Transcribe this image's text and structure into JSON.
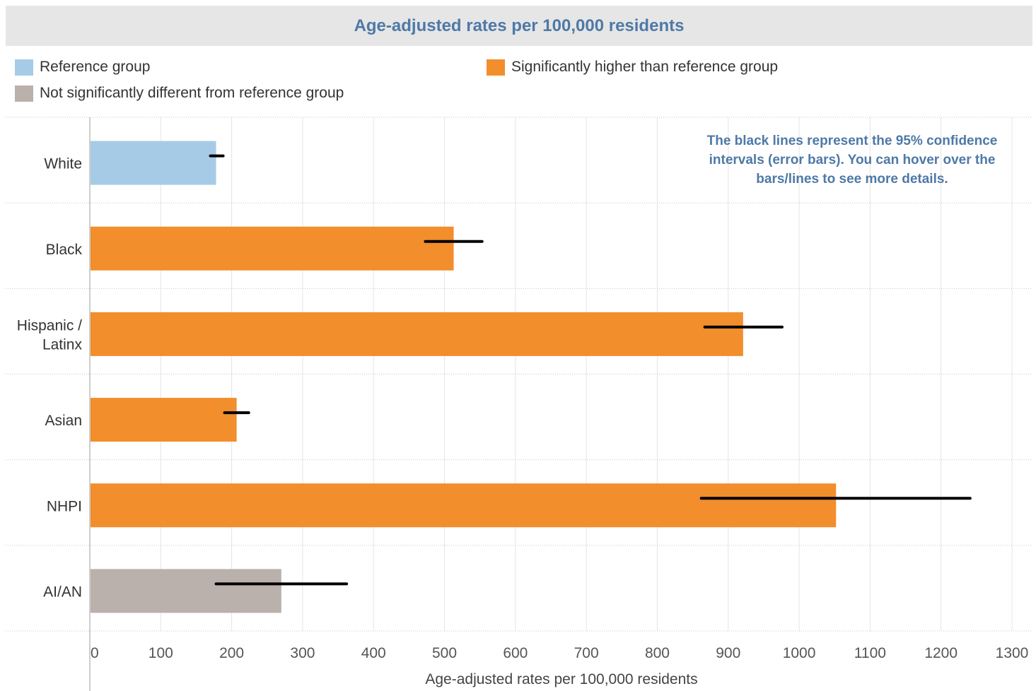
{
  "header": {
    "title": "Age-adjusted rates per 100,000 residents"
  },
  "legend": [
    {
      "label": "Reference group",
      "color": "#a6cbe7"
    },
    {
      "label": "Significantly higher than reference group",
      "color": "#f28e2b"
    },
    {
      "label": "Not significantly different from reference group",
      "color": "#bab0ac"
    }
  ],
  "note": "The black lines represent the 95% confidence intervals (error bars). You can hover over the bars/lines to see more details.",
  "chart_data": {
    "type": "bar",
    "orientation": "horizontal",
    "categories": [
      "White",
      "Black",
      "Hispanic / Latinx",
      "Asian",
      "NHPI",
      "AI/AN"
    ],
    "category_lines": [
      [
        "White"
      ],
      [
        "Black"
      ],
      [
        "Hispanic /",
        "Latinx"
      ],
      [
        "Asian"
      ],
      [
        "NHPI"
      ],
      [
        "AI/AN"
      ]
    ],
    "values": [
      178,
      513,
      921,
      207,
      1052,
      270
    ],
    "ci_low": [
      170,
      473,
      867,
      190,
      862,
      178
    ],
    "ci_high": [
      188,
      553,
      976,
      224,
      1241,
      362
    ],
    "groups": [
      "Reference group",
      "Significantly higher than reference group",
      "Significantly higher than reference group",
      "Significantly higher than reference group",
      "Significantly higher than reference group",
      "Not significantly different from reference group"
    ],
    "colors": [
      "#a6cbe7",
      "#f28e2b",
      "#f28e2b",
      "#f28e2b",
      "#f28e2b",
      "#bab0ac"
    ],
    "xlabel": "Age-adjusted rates per 100,000 residents",
    "xlim": [
      0,
      1300
    ],
    "xticks": [
      0,
      100,
      200,
      300,
      400,
      500,
      600,
      700,
      800,
      900,
      1000,
      1100,
      1200,
      1300
    ],
    "grid": true
  }
}
